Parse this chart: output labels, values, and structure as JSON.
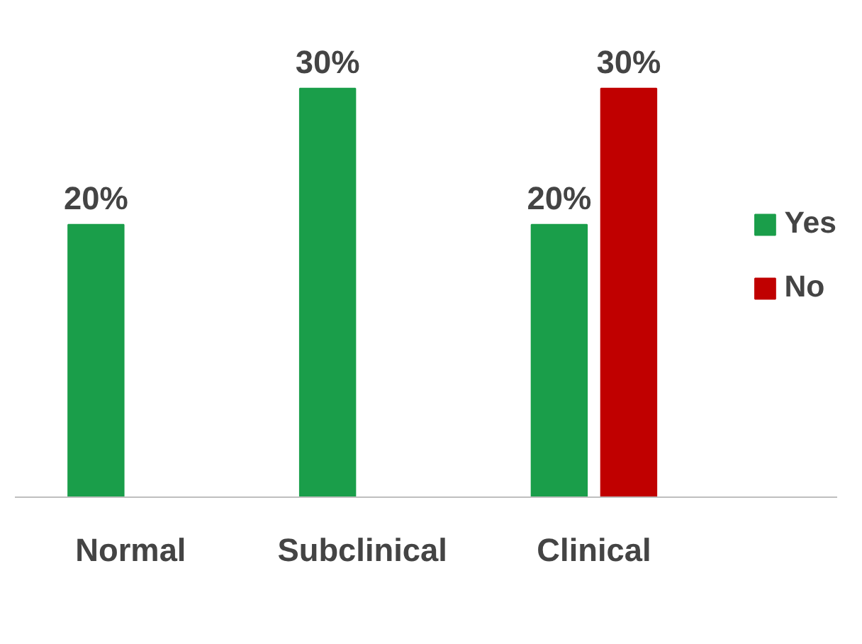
{
  "chart_data": {
    "type": "bar",
    "categories": [
      "Normal",
      "Subclinical",
      "Clinical"
    ],
    "series": [
      {
        "name": "Yes",
        "color": "#1a9e4a",
        "values": [
          20,
          30,
          20
        ],
        "value_labels": [
          "20%",
          "30%",
          "20%"
        ]
      },
      {
        "name": "No",
        "color": "#c00000",
        "values": [
          null,
          null,
          30
        ],
        "value_labels": [
          null,
          null,
          "30%"
        ]
      }
    ],
    "legend": "right",
    "grid": false
  }
}
